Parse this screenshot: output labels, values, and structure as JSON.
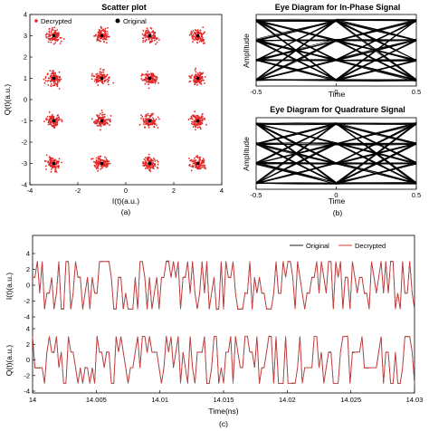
{
  "chart_data": [
    {
      "panel_label": "(a)",
      "type": "scatter",
      "title": "Scatter plot",
      "xlabel": "I(t)(a.u.)",
      "ylabel": "Q(t)(a.u.)",
      "xlim": [
        -4,
        4
      ],
      "ylim": [
        -4,
        4
      ],
      "xticks": [
        "-4",
        "-2",
        "0",
        "2",
        "4"
      ],
      "yticks": [
        "-4",
        "-3",
        "-2",
        "-1",
        "0",
        "1",
        "2",
        "3",
        "4"
      ],
      "legend": {
        "position": "top",
        "entries": [
          "Decrypted",
          "Original"
        ]
      },
      "colors": {
        "Decrypted": "#e32626",
        "Original": "#000000"
      },
      "series": [
        {
          "name": "Decrypted",
          "marker": "dot-cluster",
          "cluster_spread": 0.35,
          "centers": [
            [
              -3,
              3
            ],
            [
              -1,
              3
            ],
            [
              1,
              3
            ],
            [
              3,
              3
            ],
            [
              -3,
              1
            ],
            [
              -1,
              1
            ],
            [
              1,
              1
            ],
            [
              3,
              1
            ],
            [
              -3,
              -1
            ],
            [
              -1,
              -1
            ],
            [
              1,
              -1
            ],
            [
              3,
              -1
            ],
            [
              -3,
              -3
            ],
            [
              -1,
              -3
            ],
            [
              1,
              -3
            ],
            [
              3,
              -3
            ]
          ]
        },
        {
          "name": "Original",
          "marker": "dot",
          "points": [
            [
              -3,
              3
            ],
            [
              -1,
              3
            ],
            [
              1,
              3
            ],
            [
              3,
              3
            ],
            [
              -3,
              1
            ],
            [
              -1,
              1
            ],
            [
              1,
              1
            ],
            [
              3,
              1
            ],
            [
              -3,
              -1
            ],
            [
              -1,
              -1
            ],
            [
              1,
              -1
            ],
            [
              3,
              -1
            ],
            [
              -3,
              -3
            ],
            [
              -1,
              -3
            ],
            [
              1,
              -3
            ],
            [
              3,
              -3
            ]
          ]
        }
      ]
    },
    {
      "panel_label": "(b)",
      "type": "line",
      "title": "Eye Diagram for In-Phase Signal",
      "xlabel": "Time",
      "ylabel": "Amplitude",
      "xlim": [
        -0.5,
        0.5
      ],
      "xticks": [
        "-0.5",
        "0",
        "0.5"
      ],
      "levels": [
        -3,
        -1,
        1,
        3
      ]
    },
    {
      "panel_label": "(b)",
      "type": "line",
      "title": "Eye Diagram for Quadrature Signal",
      "xlabel": "Time",
      "ylabel": "Amplitude",
      "xlim": [
        -0.5,
        0.5
      ],
      "xticks": [
        "-0.5",
        "0",
        "0.5"
      ],
      "levels": [
        -3,
        -1,
        1,
        3
      ]
    },
    {
      "panel_label": "(c)",
      "type": "line",
      "xlabel": "Time(ns)",
      "xlim": [
        14,
        14.03
      ],
      "xticks": [
        "14",
        "14.005",
        "14.01",
        "14.015",
        "14.02",
        "14.025",
        "14.03"
      ],
      "legend": {
        "position": "top-right",
        "entries": [
          "Original",
          "Decrypted"
        ]
      },
      "colors": {
        "Original": "#222222",
        "Decrypted": "#d23c3c"
      },
      "subplots": [
        {
          "ylabel": "I(t)(a.u.)",
          "ylim": [
            -4,
            4
          ],
          "yticks": [
            "4",
            "2",
            "0",
            "-2",
            "-4"
          ],
          "symbol_levels": [
            -3,
            -1,
            1,
            3
          ]
        },
        {
          "ylabel": "Q(t)(a.u.)",
          "ylim": [
            -4,
            4
          ],
          "yticks": [
            "4",
            "2",
            "0",
            "-2",
            "-4"
          ],
          "symbol_levels": [
            -3,
            -1,
            1,
            3
          ]
        }
      ]
    }
  ],
  "captions": {
    "a": "(a)",
    "b": "(b)",
    "c": "(c)"
  }
}
